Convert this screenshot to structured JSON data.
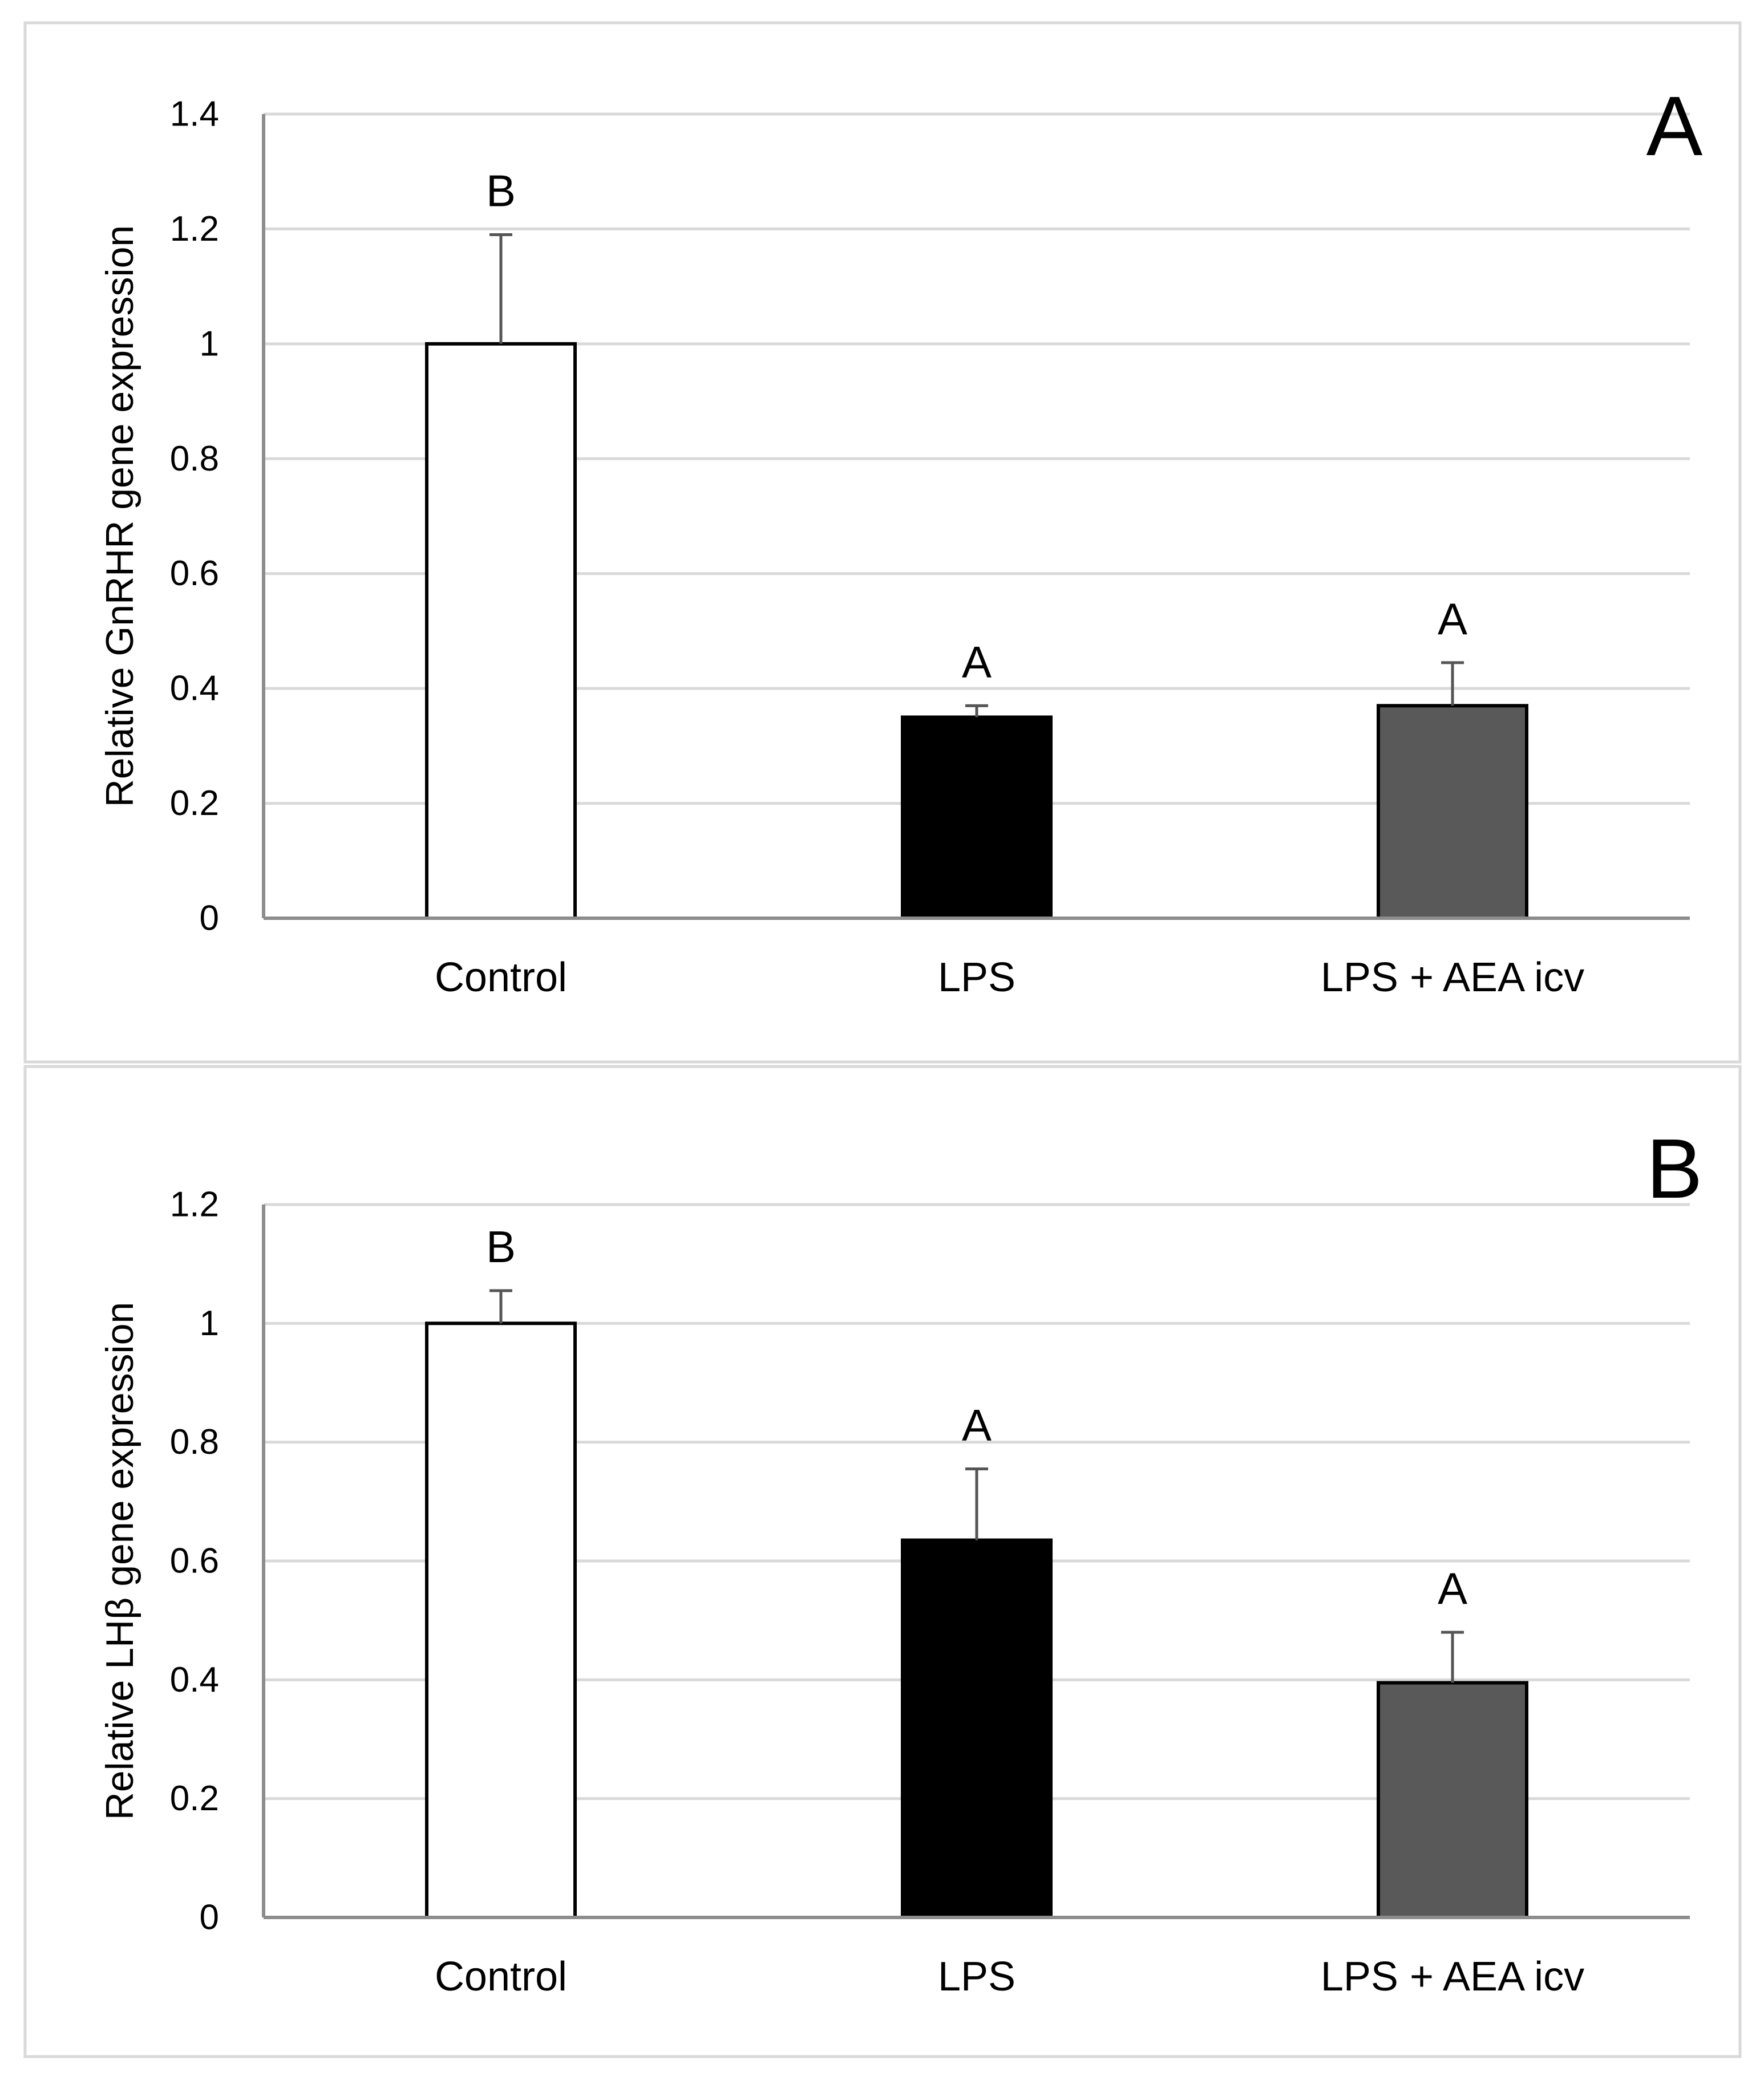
{
  "figure": {
    "colors": {
      "control_bar": "#ffffff",
      "lps_bar": "#000000",
      "lps_aea_bar": "#595959",
      "gridline": "#d9d9d9",
      "axis": "#8c8c8c",
      "error_bar": "#555555"
    }
  },
  "chart_data": [
    {
      "type": "bar",
      "panel_label": "A",
      "title": "",
      "xlabel": "",
      "ylabel": "Relative GnRHR gene expression",
      "ylim": [
        0,
        1.4
      ],
      "yticks": [
        0,
        0.2,
        0.4,
        0.6,
        0.8,
        1,
        1.2,
        1.4
      ],
      "ytick_labels": [
        "0",
        "0.2",
        "0.4",
        "0.6",
        "0.8",
        "1",
        "1.2",
        "1.4"
      ],
      "grid": true,
      "legend": "none",
      "categories": [
        "Control",
        "LPS",
        "LPS + AEA icv"
      ],
      "values": [
        1.0,
        0.35,
        0.37
      ],
      "errors": [
        0.19,
        0.02,
        0.075
      ],
      "significance_labels": [
        "B",
        "A",
        "A"
      ]
    },
    {
      "type": "bar",
      "panel_label": "B",
      "title": "",
      "xlabel": "",
      "ylabel": "Relative LHβ gene expression",
      "ylim": [
        0,
        1.2
      ],
      "yticks": [
        0,
        0.2,
        0.4,
        0.6,
        0.8,
        1,
        1.2
      ],
      "ytick_labels": [
        "0",
        "0.2",
        "0.4",
        "0.6",
        "0.8",
        "1",
        "1.2"
      ],
      "grid": true,
      "legend": "none",
      "categories": [
        "Control",
        "LPS",
        "LPS + AEA icv"
      ],
      "values": [
        1.0,
        0.635,
        0.395
      ],
      "errors": [
        0.055,
        0.12,
        0.085
      ],
      "significance_labels": [
        "B",
        "A",
        "A"
      ]
    }
  ]
}
